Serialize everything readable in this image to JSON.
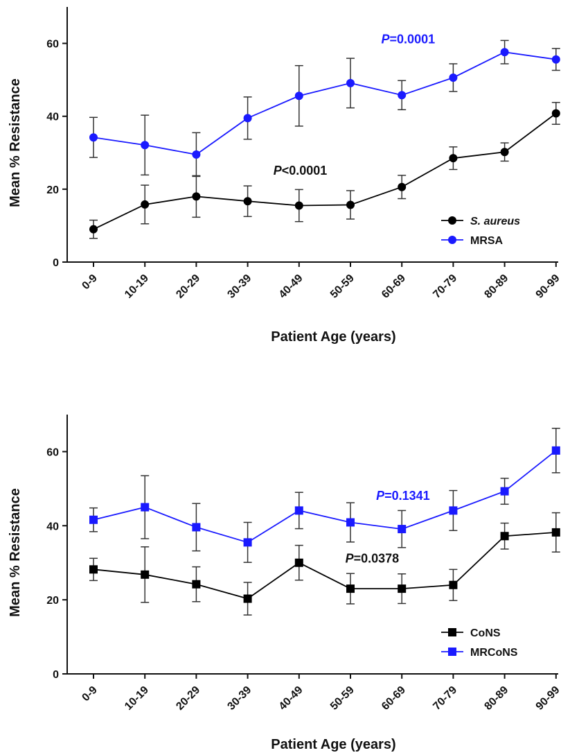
{
  "chart_data": [
    {
      "type": "line",
      "title": "",
      "xlabel": "Patient  Age (years)",
      "ylabel": "Mean % Resistance",
      "ylim": [
        0,
        70
      ],
      "yticks": [
        0,
        20,
        40,
        60
      ],
      "categories": [
        "0-9",
        "10-19",
        "20-29",
        "30-39",
        "40-49",
        "50-59",
        "60-69",
        "70-79",
        "80-89",
        "90-99"
      ],
      "series": [
        {
          "name": "S. aureus",
          "marker": "circle",
          "color": "#000000",
          "values": [
            9,
            15.8,
            18,
            16.7,
            15.5,
            15.7,
            20.6,
            28.5,
            30.2,
            40.8
          ],
          "error": [
            2.5,
            5.3,
            5.7,
            4.2,
            4.4,
            3.9,
            3.2,
            3.1,
            2.5,
            3
          ]
        },
        {
          "name": "MRSA",
          "marker": "circle",
          "color": "#1a1aff",
          "values": [
            34.2,
            32.1,
            29.5,
            39.5,
            45.6,
            49.1,
            45.8,
            50.6,
            57.6,
            55.6
          ],
          "error": [
            5.5,
            8.2,
            6,
            5.8,
            8.3,
            6.8,
            4,
            3.8,
            3.2,
            3
          ]
        }
      ],
      "annotations": [
        {
          "text": "P=0.0001",
          "color": "#1a1aff",
          "x": 5.6,
          "y": 60
        },
        {
          "text": "P<0.0001",
          "color": "#111111",
          "x": 3.5,
          "y": 24
        }
      ],
      "legend": "bottom-right"
    },
    {
      "type": "line",
      "title": "",
      "xlabel": "Patient  Age (years)",
      "ylabel": "Mean % Resistance",
      "ylim": [
        0,
        70
      ],
      "yticks": [
        0,
        20,
        40,
        60
      ],
      "categories": [
        "0-9",
        "10-19",
        "20-29",
        "30-39",
        "40-49",
        "50-59",
        "60-69",
        "70-79",
        "80-89",
        "90-99"
      ],
      "series": [
        {
          "name": "CoNS",
          "marker": "square",
          "color": "#000000",
          "values": [
            28.2,
            26.8,
            24.2,
            20.3,
            30,
            23,
            23,
            24,
            37.2,
            38.2
          ],
          "error": [
            3,
            7.5,
            4.7,
            4.4,
            4.7,
            4.1,
            4,
            4.2,
            3.5,
            5.3
          ]
        },
        {
          "name": "MRCoNS",
          "marker": "square",
          "color": "#1a1aff",
          "values": [
            41.6,
            45,
            39.6,
            35.5,
            44.1,
            40.9,
            39.1,
            44.1,
            49.3,
            60.3
          ],
          "error": [
            3.2,
            8.5,
            6.4,
            5.4,
            4.9,
            5.3,
            5,
            5.4,
            3.5,
            6
          ]
        }
      ],
      "annotations": [
        {
          "text": "P=0.1341",
          "color": "#1a1aff",
          "x": 5.5,
          "y": 47
        },
        {
          "text": "P=0.0378",
          "color": "#111111",
          "x": 4.9,
          "y": 30
        }
      ],
      "legend": "bottom-right"
    }
  ]
}
